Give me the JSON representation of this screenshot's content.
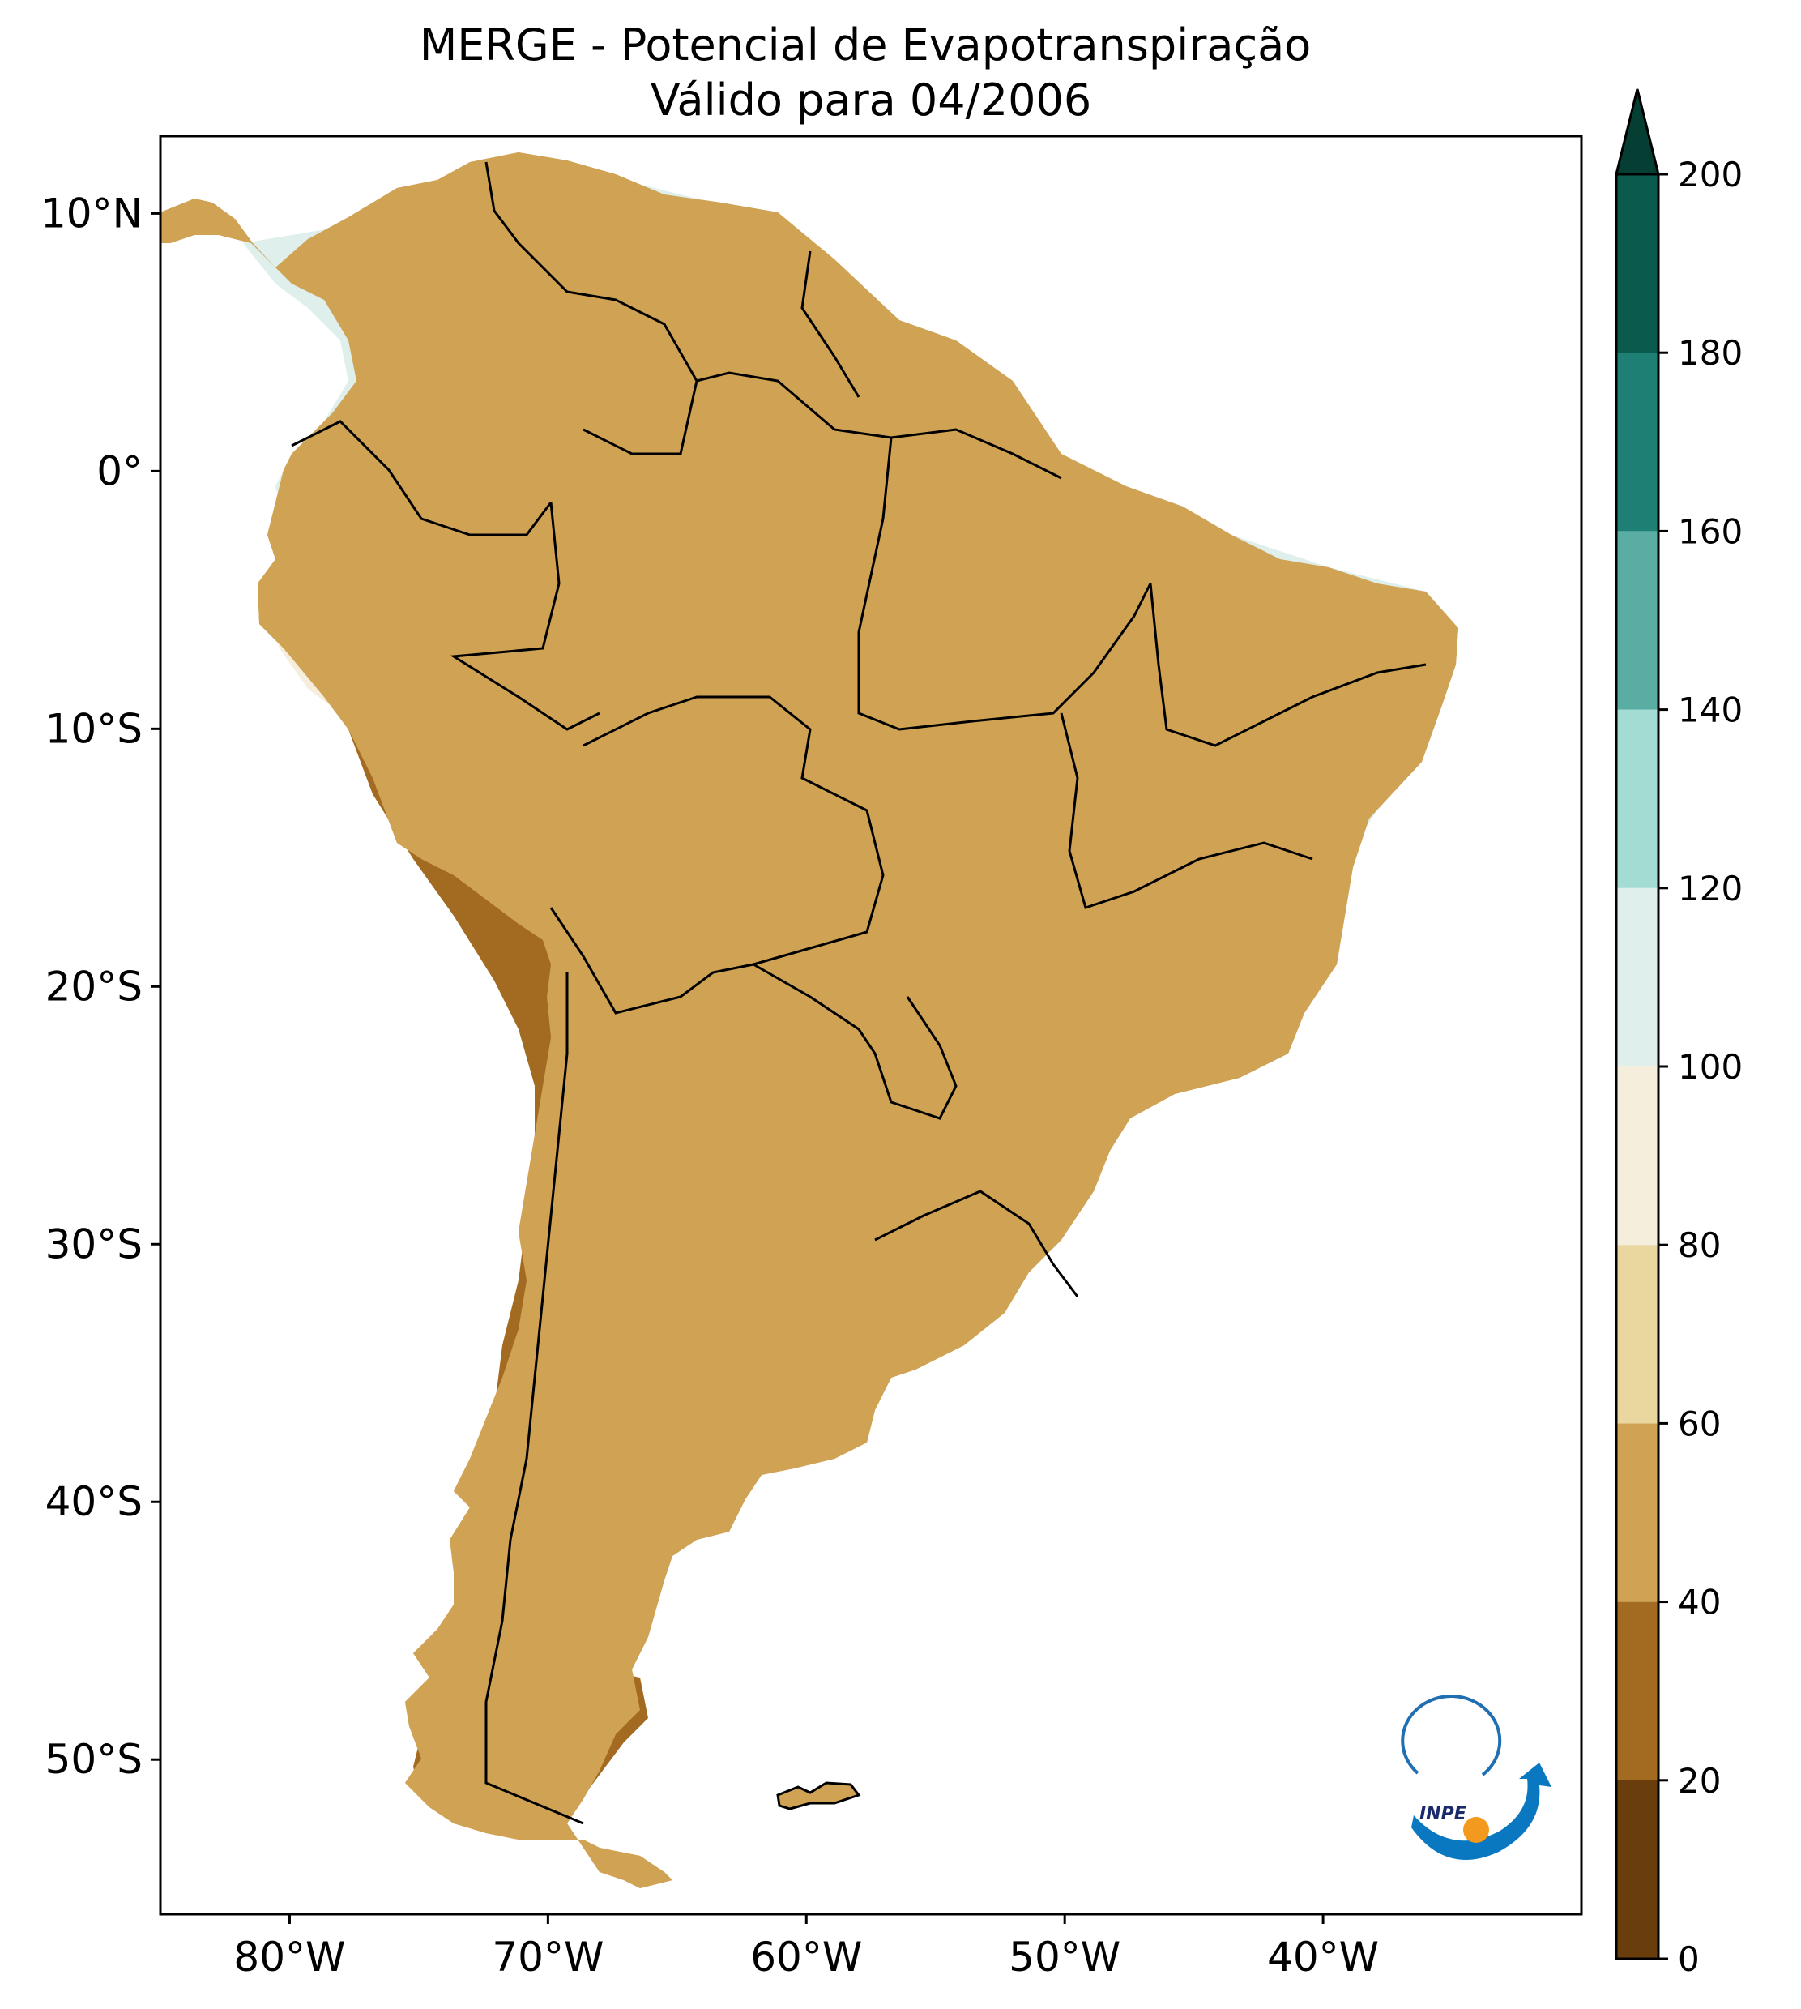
{
  "title": {
    "line1": "MERGE - Potencial de Evapotranspiração",
    "line2": "Válido para 04/2006"
  },
  "map": {
    "extent": {
      "lon_min": -85,
      "lon_max": -30,
      "lat_min": -56,
      "lat_max": 13
    },
    "lon_ticks": [
      {
        "value": -80,
        "label": "80°W"
      },
      {
        "value": -70,
        "label": "70°W"
      },
      {
        "value": -60,
        "label": "60°W"
      },
      {
        "value": -50,
        "label": "50°W"
      },
      {
        "value": -40,
        "label": "40°W"
      }
    ],
    "lat_ticks": [
      {
        "value": 10,
        "label": "10°N"
      },
      {
        "value": 0,
        "label": "0°"
      },
      {
        "value": -10,
        "label": "10°S"
      },
      {
        "value": -20,
        "label": "20°S"
      },
      {
        "value": -30,
        "label": "30°S"
      },
      {
        "value": -40,
        "label": "40°S"
      },
      {
        "value": -50,
        "label": "50°S"
      }
    ]
  },
  "colorbar": {
    "levels": [
      {
        "min": 0,
        "max": 20,
        "color": "#6a3d0c"
      },
      {
        "min": 20,
        "max": 40,
        "color": "#a36a21"
      },
      {
        "min": 40,
        "max": 60,
        "color": "#cfa254"
      },
      {
        "min": 60,
        "max": 80,
        "color": "#ead7a0"
      },
      {
        "min": 80,
        "max": 100,
        "color": "#f6eedc"
      },
      {
        "min": 100,
        "max": 120,
        "color": "#deefec"
      },
      {
        "min": 120,
        "max": 140,
        "color": "#a3dcd2"
      },
      {
        "min": 140,
        "max": 160,
        "color": "#5aada3"
      },
      {
        "min": 160,
        "max": 180,
        "color": "#1e8075"
      },
      {
        "min": 180,
        "max": 200,
        "color": "#0b5a4e"
      }
    ],
    "extend_color": "#053f34",
    "tick_labels": [
      "0",
      "20",
      "40",
      "60",
      "80",
      "100",
      "120",
      "140",
      "160",
      "180",
      "200"
    ]
  },
  "logo": {
    "text": "INPE"
  }
}
